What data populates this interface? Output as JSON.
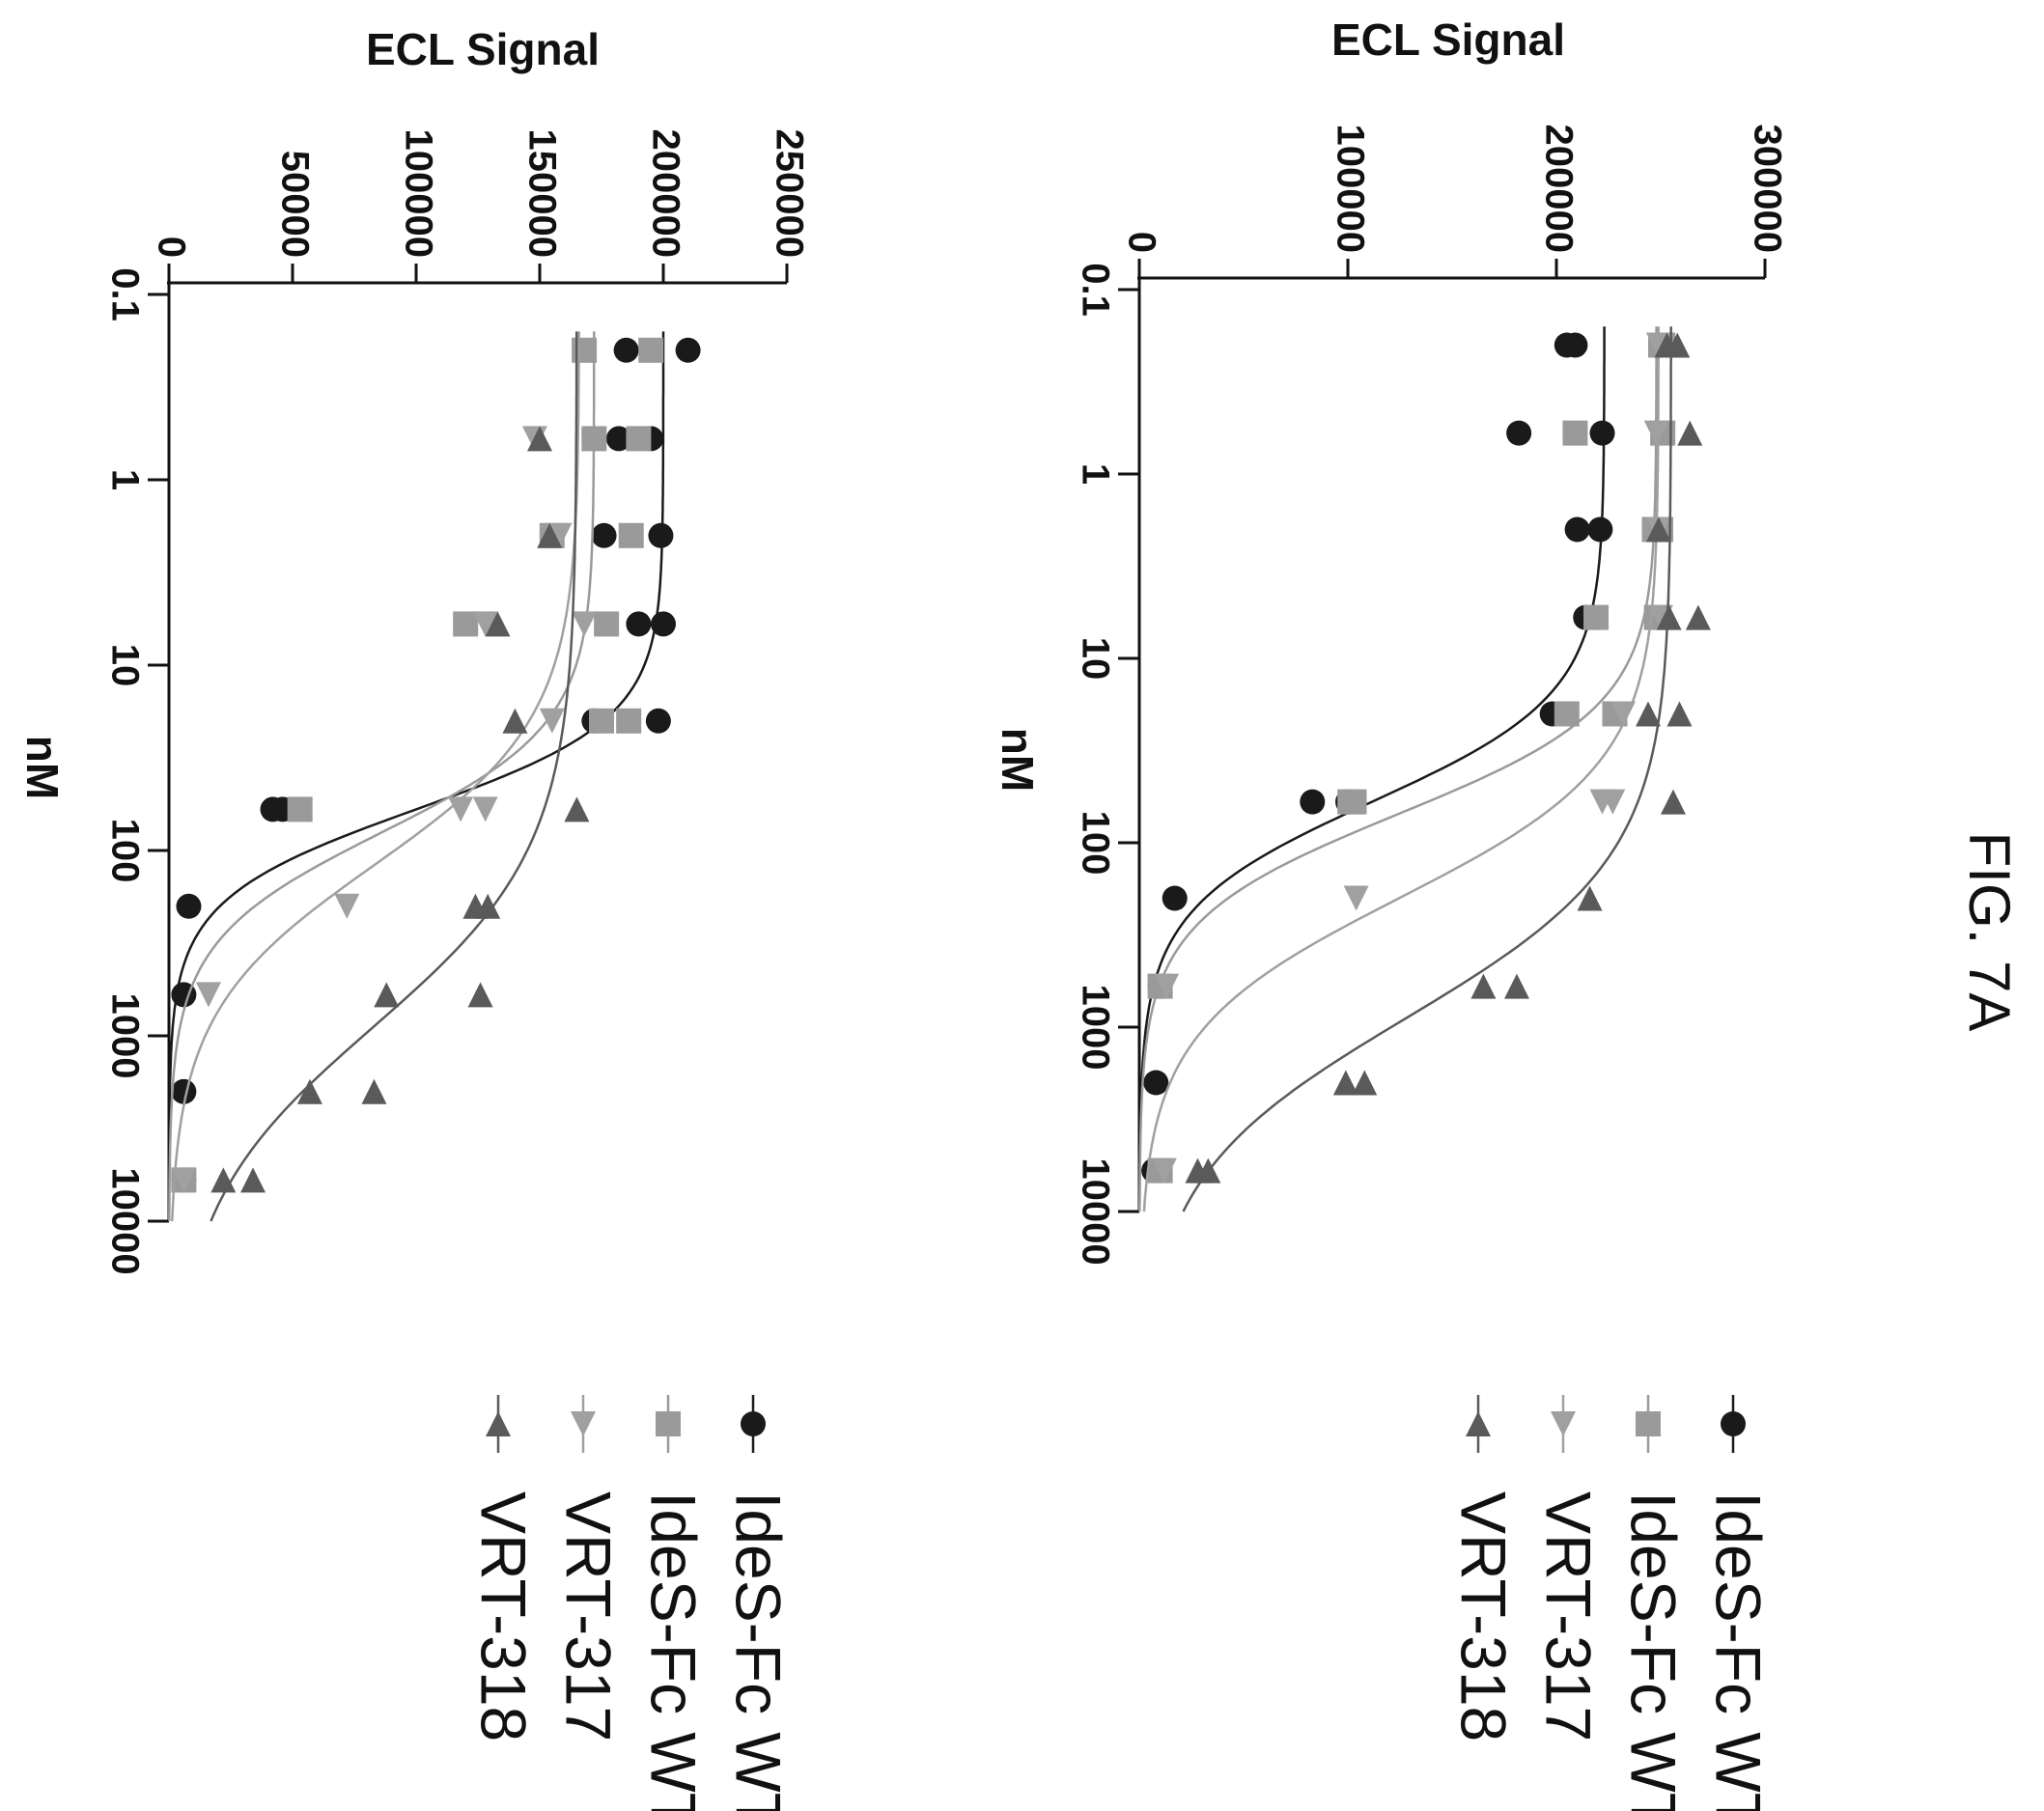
{
  "figure_label": "FIG. 7A",
  "colors": {
    "IdeS-Fc WT (circle)": "#1a1a1a",
    "IdeS-Fc WT (square)": "#9a9a9a",
    "VRT-317": "#a0a0a0",
    "VRT-318": "#5a5a5a",
    "axis": "#111111"
  },
  "chart_data": [
    {
      "type": "scatter",
      "title": "",
      "xlabel": "nM",
      "ylabel": "ECL Signal",
      "x_scale": "log",
      "xlim": [
        0.1,
        10000
      ],
      "ylim": [
        0,
        300000
      ],
      "x_ticks": [
        {
          "value": 0.1,
          "label": "0.1"
        },
        {
          "value": 1,
          "label": "1"
        },
        {
          "value": 10,
          "label": "10"
        },
        {
          "value": 100,
          "label": "100"
        },
        {
          "value": 1000,
          "label": "1000"
        },
        {
          "value": 10000,
          "label": "10000"
        }
      ],
      "y_ticks": [
        {
          "value": 0,
          "label": "0"
        },
        {
          "value": 100000,
          "label": "100000"
        },
        {
          "value": 200000,
          "label": "200000"
        },
        {
          "value": 300000,
          "label": "300000"
        }
      ],
      "legend": [
        "IdeS-Fc WT",
        "IdeS-Fc WT",
        "VRT-317",
        "VRT-318"
      ],
      "legend_position": "right",
      "series": [
        {
          "name": "IdeS-Fc WT",
          "marker": "circle",
          "color": "#1a1a1a",
          "points": [
            [
              0.2,
              205000
            ],
            [
              0.2,
              209000
            ],
            [
              0.6,
              182000
            ],
            [
              0.6,
              222000
            ],
            [
              2,
              210000
            ],
            [
              2,
              221000
            ],
            [
              6,
              214000
            ],
            [
              6,
              218000
            ],
            [
              20,
              198000
            ],
            [
              20,
              228000
            ],
            [
              60,
              83000
            ],
            [
              60,
              100000
            ],
            [
              200,
              17000
            ],
            [
              600,
              10000
            ],
            [
              2000,
              8000
            ],
            [
              6000,
              7000
            ]
          ],
          "fit": {
            "top": 223000,
            "bottom": 0,
            "ec50": 60,
            "hill": 1.5
          }
        },
        {
          "name": "IdeS-Fc WT",
          "marker": "square",
          "color": "#9a9a9a",
          "points": [
            [
              0.2,
              250000
            ],
            [
              0.2,
              251000
            ],
            [
              0.6,
              209000
            ],
            [
              0.6,
              251000
            ],
            [
              2,
              247000
            ],
            [
              2,
              250000
            ],
            [
              6,
              219000
            ],
            [
              6,
              248000
            ],
            [
              20,
              205000
            ],
            [
              20,
              228000
            ],
            [
              60,
              101000
            ],
            [
              60,
              103000
            ],
            [
              600,
              10000
            ],
            [
              6000,
              10000
            ]
          ],
          "fit": {
            "top": 248000,
            "bottom": 0,
            "ec50": 70,
            "hill": 1.5
          }
        },
        {
          "name": "VRT-317",
          "marker": "triangle-right",
          "color": "#a0a0a0",
          "points": [
            [
              0.2,
              249000
            ],
            [
              0.6,
              248000
            ],
            [
              2,
              249000
            ],
            [
              6,
              250000
            ],
            [
              20,
              232000
            ],
            [
              60,
              222000
            ],
            [
              60,
              227000
            ],
            [
              200,
              104000
            ],
            [
              600,
              13000
            ],
            [
              6000,
              12000
            ]
          ],
          "fit": {
            "top": 249000,
            "bottom": 0,
            "ec50": 200,
            "hill": 1.2
          }
        },
        {
          "name": "VRT-318",
          "marker": "triangle-left",
          "color": "#5a5a5a",
          "points": [
            [
              0.2,
              253000
            ],
            [
              0.2,
              258000
            ],
            [
              0.6,
              264000
            ],
            [
              2,
              249000
            ],
            [
              6,
              254000
            ],
            [
              6,
              268000
            ],
            [
              20,
              244000
            ],
            [
              20,
              259000
            ],
            [
              60,
              256000
            ],
            [
              200,
              216000
            ],
            [
              600,
              165000
            ],
            [
              600,
              181000
            ],
            [
              2000,
              99000
            ],
            [
              2000,
              108000
            ],
            [
              6000,
              28000
            ],
            [
              6000,
              33000
            ]
          ],
          "fit": {
            "top": 255000,
            "bottom": 0,
            "ec50": 900,
            "hill": 1.0
          }
        }
      ]
    },
    {
      "type": "scatter",
      "title": "",
      "xlabel": "nM",
      "ylabel": "ECL Signal",
      "x_scale": "log",
      "xlim": [
        0.1,
        10000
      ],
      "ylim": [
        0,
        250000
      ],
      "x_ticks": [
        {
          "value": 0.1,
          "label": "0.1"
        },
        {
          "value": 1,
          "label": "1"
        },
        {
          "value": 10,
          "label": "10"
        },
        {
          "value": 100,
          "label": "100"
        },
        {
          "value": 1000,
          "label": "1000"
        },
        {
          "value": 10000,
          "label": "10000"
        }
      ],
      "y_ticks": [
        {
          "value": 0,
          "label": "0"
        },
        {
          "value": 50000,
          "label": "50000"
        },
        {
          "value": 100000,
          "label": "100000"
        },
        {
          "value": 150000,
          "label": "150000"
        },
        {
          "value": 200000,
          "label": "200000"
        },
        {
          "value": 250000,
          "label": "250000"
        }
      ],
      "legend": [
        "IdeS-Fc WT",
        "IdeS-Fc WT",
        "VRT-317",
        "VRT-318"
      ],
      "legend_position": "right",
      "series": [
        {
          "name": "IdeS-Fc WT",
          "marker": "circle",
          "color": "#1a1a1a",
          "points": [
            [
              0.2,
              185000
            ],
            [
              0.2,
              210000
            ],
            [
              0.6,
              182000
            ],
            [
              0.6,
              195000
            ],
            [
              2,
              176000
            ],
            [
              2,
              199000
            ],
            [
              6,
              190000
            ],
            [
              6,
              200000
            ],
            [
              20,
              172000
            ],
            [
              20,
              198000
            ],
            [
              60,
              42000
            ],
            [
              60,
              46000
            ],
            [
              200,
              8000
            ],
            [
              600,
              6000
            ],
            [
              2000,
              6000
            ],
            [
              6000,
              6000
            ]
          ],
          "fit": {
            "top": 200000,
            "bottom": 0,
            "ec50": 60,
            "hill": 1.8
          }
        },
        {
          "name": "IdeS-Fc WT",
          "marker": "square",
          "color": "#9a9a9a",
          "points": [
            [
              0.2,
              168000
            ],
            [
              0.2,
              195000
            ],
            [
              0.6,
              172000
            ],
            [
              0.6,
              190000
            ],
            [
              2,
              155000
            ],
            [
              2,
              187000
            ],
            [
              6,
              120000
            ],
            [
              6,
              177000
            ],
            [
              20,
              175000
            ],
            [
              20,
              186000
            ],
            [
              60,
              53000
            ],
            [
              6000,
              6000
            ]
          ],
          "fit": {
            "top": 172000,
            "bottom": 0,
            "ec50": 80,
            "hill": 1.5
          }
        },
        {
          "name": "VRT-317",
          "marker": "triangle-right",
          "color": "#a0a0a0",
          "points": [
            [
              0.6,
              148000
            ],
            [
              2,
              158000
            ],
            [
              6,
              128000
            ],
            [
              6,
              168000
            ],
            [
              20,
              155000
            ],
            [
              60,
              118000
            ],
            [
              60,
              128000
            ],
            [
              200,
              72000
            ],
            [
              600,
              16000
            ],
            [
              6000,
              6000
            ]
          ],
          "fit": {
            "top": 166000,
            "bottom": 0,
            "ec50": 120,
            "hill": 1.1
          }
        },
        {
          "name": "VRT-318",
          "marker": "triangle-left",
          "color": "#5a5a5a",
          "points": [
            [
              0.6,
              150000
            ],
            [
              2,
              154000
            ],
            [
              6,
              133000
            ],
            [
              20,
              140000
            ],
            [
              60,
              165000
            ],
            [
              200,
              124000
            ],
            [
              200,
              129000
            ],
            [
              600,
              88000
            ],
            [
              600,
              126000
            ],
            [
              2000,
              57000
            ],
            [
              2000,
              83000
            ],
            [
              6000,
              22000
            ],
            [
              6000,
              34000
            ]
          ],
          "fit": {
            "top": 165000,
            "bottom": 0,
            "ec50": 900,
            "hill": 0.9
          }
        }
      ]
    }
  ]
}
